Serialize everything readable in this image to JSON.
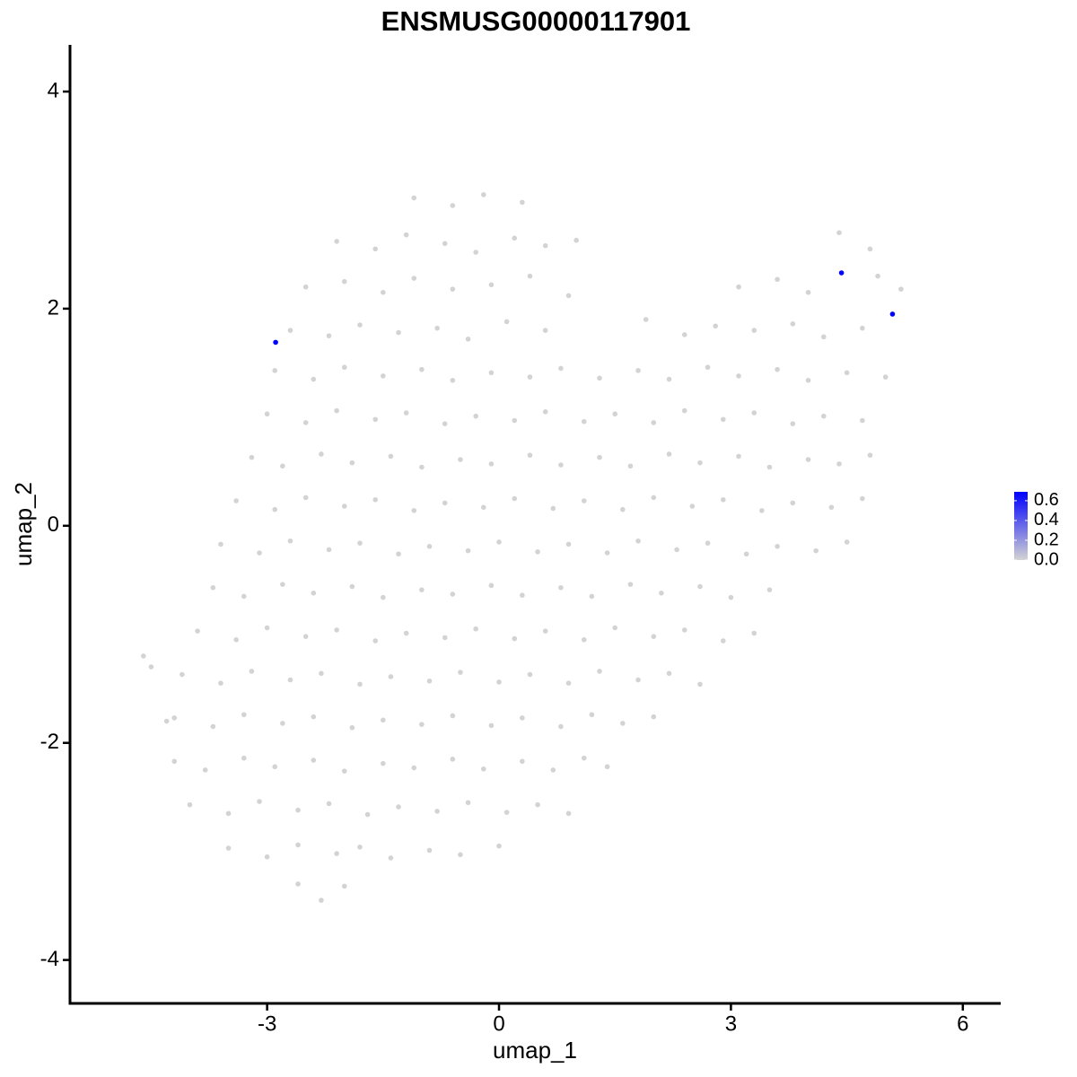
{
  "chart_data": {
    "type": "scatter",
    "title": "ENSMUSG00000117901",
    "x_label": "umap_1",
    "y_label": "umap_2",
    "xlim": [
      -5.55,
      6.49
    ],
    "ylim": [
      -4.4,
      4.43
    ],
    "xticks": [
      -3,
      0,
      3,
      6
    ],
    "yticks": [
      -4,
      -2,
      0,
      2,
      4
    ],
    "color_low": "#d3d3d3",
    "color_high": "#0000ff",
    "colorlim": [
      0,
      0.69
    ],
    "colorticks": [
      {
        "value": 0,
        "label": "0.0"
      },
      0.2,
      0.4,
      0.6
    ],
    "x": [
      -1.1,
      -0.6,
      -0.2,
      0.3,
      -2.1,
      -1.6,
      -1.2,
      -0.7,
      -0.3,
      0.2,
      0.6,
      1.0,
      4.4,
      4.8,
      -2.5,
      -2.0,
      -1.5,
      -1.1,
      -0.6,
      -0.1,
      0.4,
      0.9,
      3.1,
      3.6,
      4.0,
      4.9,
      5.2,
      -2.7,
      -2.2,
      -1.8,
      -1.3,
      -0.8,
      -0.4,
      0.1,
      0.6,
      1.9,
      2.4,
      2.8,
      3.3,
      3.8,
      4.2,
      4.7,
      -2.9,
      -2.4,
      -2.0,
      -1.5,
      -1.0,
      -0.6,
      -0.1,
      0.4,
      0.8,
      1.3,
      1.8,
      2.2,
      2.7,
      3.1,
      3.6,
      4.0,
      4.5,
      5.0,
      -3.0,
      -2.5,
      -2.1,
      -1.6,
      -1.2,
      -0.7,
      -0.3,
      0.2,
      0.6,
      1.1,
      1.5,
      2.0,
      2.4,
      2.9,
      3.3,
      3.8,
      4.2,
      4.7,
      -3.2,
      -2.8,
      -2.3,
      -1.9,
      -1.4,
      -1.0,
      -0.5,
      -0.1,
      0.4,
      0.8,
      1.3,
      1.7,
      2.2,
      2.6,
      3.1,
      3.5,
      4.0,
      4.4,
      4.8,
      -3.4,
      -2.9,
      -2.5,
      -2.0,
      -1.6,
      -1.1,
      -0.7,
      -0.2,
      0.2,
      0.7,
      1.1,
      1.6,
      2.0,
      2.5,
      2.9,
      3.4,
      3.8,
      4.3,
      4.7,
      -3.6,
      -3.1,
      -2.7,
      -2.2,
      -1.8,
      -1.3,
      -0.9,
      -0.4,
      0.0,
      0.5,
      0.9,
      1.4,
      1.8,
      2.3,
      2.7,
      3.2,
      3.6,
      4.1,
      4.5,
      -3.7,
      -3.3,
      -2.8,
      -2.4,
      -1.9,
      -1.5,
      -1.0,
      -0.6,
      -0.1,
      0.3,
      0.8,
      1.2,
      1.7,
      2.1,
      2.6,
      3.0,
      3.5,
      -3.9,
      -3.4,
      -3.0,
      -2.5,
      -2.1,
      -1.6,
      -1.2,
      -0.7,
      -0.3,
      0.2,
      0.6,
      1.1,
      1.5,
      2.0,
      2.4,
      2.9,
      3.3,
      -4.1,
      -3.6,
      -3.2,
      -2.7,
      -2.3,
      -1.8,
      -1.4,
      -0.9,
      -0.5,
      0.0,
      0.4,
      0.9,
      1.3,
      1.8,
      2.2,
      2.6,
      -4.2,
      -3.7,
      -3.3,
      -2.8,
      -2.4,
      -1.9,
      -1.5,
      -1.0,
      -0.6,
      -0.1,
      0.3,
      0.8,
      1.2,
      1.6,
      2.0,
      -4.2,
      -3.8,
      -3.3,
      -2.9,
      -2.4,
      -2.0,
      -1.5,
      -1.1,
      -0.6,
      -0.2,
      0.3,
      0.7,
      1.1,
      1.4,
      -4.0,
      -3.5,
      -3.1,
      -2.6,
      -2.2,
      -1.7,
      -1.3,
      -0.8,
      -0.4,
      0.1,
      0.5,
      0.9,
      -3.5,
      -3.0,
      -2.6,
      -2.1,
      -1.8,
      -1.4,
      -0.9,
      -0.5,
      0.0,
      -2.6,
      -2.3,
      -2.0,
      -4.6,
      -4.5,
      -4.3,
      -2.89,
      4.43,
      5.09
    ],
    "y": [
      3.02,
      2.95,
      3.05,
      2.98,
      2.62,
      2.55,
      2.68,
      2.6,
      2.52,
      2.65,
      2.58,
      2.63,
      2.7,
      2.55,
      2.2,
      2.25,
      2.15,
      2.28,
      2.18,
      2.22,
      2.3,
      2.12,
      2.2,
      2.27,
      2.15,
      2.3,
      2.18,
      1.8,
      1.75,
      1.85,
      1.78,
      1.82,
      1.72,
      1.88,
      1.8,
      1.9,
      1.76,
      1.84,
      1.8,
      1.86,
      1.74,
      1.82,
      1.43,
      1.35,
      1.46,
      1.38,
      1.44,
      1.34,
      1.41,
      1.37,
      1.45,
      1.36,
      1.43,
      1.35,
      1.46,
      1.38,
      1.44,
      1.34,
      1.41,
      1.37,
      1.03,
      0.95,
      1.06,
      0.98,
      1.04,
      0.94,
      1.01,
      0.97,
      1.05,
      0.96,
      1.03,
      0.95,
      1.06,
      0.98,
      1.04,
      0.94,
      1.01,
      0.97,
      0.63,
      0.55,
      0.66,
      0.58,
      0.64,
      0.54,
      0.61,
      0.57,
      0.65,
      0.56,
      0.63,
      0.55,
      0.66,
      0.58,
      0.64,
      0.54,
      0.61,
      0.57,
      0.65,
      0.23,
      0.15,
      0.26,
      0.18,
      0.24,
      0.14,
      0.21,
      0.17,
      0.25,
      0.16,
      0.23,
      0.15,
      0.26,
      0.18,
      0.24,
      0.14,
      0.21,
      0.17,
      0.25,
      -0.17,
      -0.25,
      -0.14,
      -0.22,
      -0.16,
      -0.26,
      -0.19,
      -0.23,
      -0.15,
      -0.24,
      -0.17,
      -0.25,
      -0.14,
      -0.22,
      -0.16,
      -0.26,
      -0.19,
      -0.23,
      -0.15,
      -0.57,
      -0.65,
      -0.54,
      -0.62,
      -0.56,
      -0.66,
      -0.59,
      -0.63,
      -0.55,
      -0.64,
      -0.57,
      -0.65,
      -0.54,
      -0.62,
      -0.56,
      -0.66,
      -0.59,
      -0.97,
      -1.05,
      -0.94,
      -1.02,
      -0.96,
      -1.06,
      -0.99,
      -1.03,
      -0.95,
      -1.04,
      -0.97,
      -1.05,
      -0.94,
      -1.02,
      -0.96,
      -1.06,
      -0.99,
      -1.37,
      -1.45,
      -1.34,
      -1.42,
      -1.36,
      -1.46,
      -1.39,
      -1.43,
      -1.35,
      -1.44,
      -1.37,
      -1.45,
      -1.34,
      -1.42,
      -1.36,
      -1.46,
      -1.77,
      -1.85,
      -1.74,
      -1.82,
      -1.76,
      -1.86,
      -1.79,
      -1.83,
      -1.75,
      -1.84,
      -1.77,
      -1.85,
      -1.74,
      -1.82,
      -1.76,
      -2.17,
      -2.25,
      -2.14,
      -2.22,
      -2.16,
      -2.26,
      -2.19,
      -2.23,
      -2.15,
      -2.24,
      -2.17,
      -2.25,
      -2.14,
      -2.22,
      -2.57,
      -2.65,
      -2.54,
      -2.62,
      -2.56,
      -2.66,
      -2.59,
      -2.63,
      -2.55,
      -2.64,
      -2.57,
      -2.65,
      -2.97,
      -3.05,
      -2.94,
      -3.02,
      -2.96,
      -3.06,
      -2.99,
      -3.03,
      -2.95,
      -3.3,
      -3.45,
      -3.32,
      -1.2,
      -1.3,
      -1.8,
      1.69,
      2.33,
      1.95
    ],
    "expression": [
      0,
      0,
      0,
      0,
      0,
      0,
      0,
      0,
      0,
      0,
      0,
      0,
      0,
      0,
      0,
      0,
      0,
      0,
      0,
      0,
      0,
      0,
      0,
      0,
      0,
      0,
      0,
      0,
      0,
      0,
      0,
      0,
      0,
      0,
      0,
      0,
      0,
      0,
      0,
      0,
      0,
      0,
      0,
      0,
      0,
      0,
      0,
      0,
      0,
      0,
      0,
      0,
      0,
      0,
      0,
      0,
      0,
      0,
      0,
      0,
      0,
      0,
      0,
      0,
      0,
      0,
      0,
      0,
      0,
      0,
      0,
      0,
      0,
      0,
      0,
      0,
      0,
      0,
      0,
      0,
      0,
      0,
      0,
      0,
      0,
      0,
      0,
      0,
      0,
      0,
      0,
      0,
      0,
      0,
      0,
      0,
      0,
      0,
      0,
      0,
      0,
      0,
      0,
      0,
      0,
      0,
      0,
      0,
      0,
      0,
      0,
      0,
      0,
      0,
      0,
      0,
      0,
      0,
      0,
      0,
      0,
      0,
      0,
      0,
      0,
      0,
      0,
      0,
      0,
      0,
      0,
      0,
      0,
      0,
      0,
      0,
      0,
      0,
      0,
      0,
      0,
      0,
      0,
      0,
      0,
      0,
      0,
      0,
      0,
      0,
      0,
      0,
      0,
      0,
      0,
      0,
      0,
      0,
      0,
      0,
      0,
      0,
      0,
      0,
      0,
      0,
      0,
      0,
      0,
      0,
      0,
      0,
      0,
      0,
      0,
      0,
      0,
      0,
      0,
      0,
      0,
      0,
      0,
      0,
      0,
      0,
      0,
      0,
      0,
      0,
      0,
      0,
      0,
      0,
      0,
      0,
      0,
      0,
      0,
      0,
      0,
      0,
      0,
      0,
      0,
      0,
      0,
      0,
      0,
      0,
      0,
      0,
      0,
      0,
      0,
      0,
      0,
      0,
      0,
      0,
      0,
      0,
      0,
      0,
      0,
      0,
      0,
      0,
      0,
      0,
      0,
      0,
      0,
      0,
      0,
      0,
      0,
      0,
      0,
      0,
      0,
      0.69,
      0.69,
      0.69
    ]
  }
}
